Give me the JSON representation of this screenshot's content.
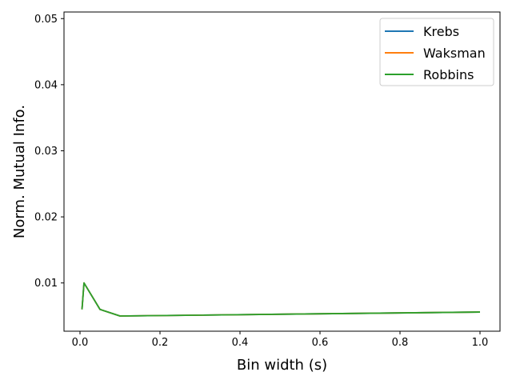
{
  "chart_data": {
    "type": "line",
    "xlabel": "Bin width (s)",
    "ylabel": "Norm. Mutual Info.",
    "xlim": [
      -0.04,
      1.05
    ],
    "ylim": [
      0.0027,
      0.051
    ],
    "x_ticks": [
      0.0,
      0.2,
      0.4,
      0.6,
      0.8,
      1.0
    ],
    "x_tick_labels": [
      "0.0",
      "0.2",
      "0.4",
      "0.6",
      "0.8",
      "1.0"
    ],
    "y_ticks": [
      0.01,
      0.02,
      0.03,
      0.04,
      0.05
    ],
    "y_tick_labels": [
      "0.01",
      "0.02",
      "0.03",
      "0.04",
      "0.05"
    ],
    "grid": false,
    "legend_position": "top-right",
    "series": [
      {
        "name": "Krebs",
        "color": "#1f77b4",
        "x": [
          0.005,
          0.01,
          0.05,
          0.1,
          1.0
        ],
        "y": [
          0.006,
          0.01,
          0.006,
          0.005,
          0.0056
        ]
      },
      {
        "name": "Waksman",
        "color": "#ff7f0e",
        "x": [
          0.005,
          0.01,
          0.05,
          0.1,
          1.0
        ],
        "y": [
          0.006,
          0.01,
          0.006,
          0.005,
          0.0056
        ]
      },
      {
        "name": "Robbins",
        "color": "#2ca02c",
        "x": [
          0.005,
          0.01,
          0.05,
          0.1,
          1.0
        ],
        "y": [
          0.006,
          0.01,
          0.006,
          0.005,
          0.0056
        ]
      }
    ]
  }
}
